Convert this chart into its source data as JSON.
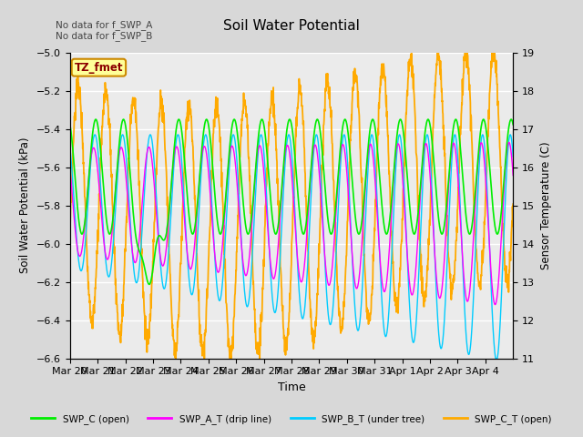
{
  "title": "Soil Water Potential",
  "xlabel": "Time",
  "ylabel_left": "Soil Water Potential (kPa)",
  "ylabel_right": "Sensor Temperature (C)",
  "ylim_left": [
    -6.6,
    -5.0
  ],
  "ylim_right": [
    11.0,
    19.0
  ],
  "yticks_left": [
    -6.6,
    -6.4,
    -6.2,
    -6.0,
    -5.8,
    -5.6,
    -5.4,
    -5.2,
    -5.0
  ],
  "yticks_right": [
    11.0,
    12.0,
    13.0,
    14.0,
    15.0,
    16.0,
    17.0,
    18.0,
    19.0
  ],
  "xtick_labels": [
    "Mar 20",
    "Mar 21",
    "Mar 22",
    "Mar 23",
    "Mar 24",
    "Mar 25",
    "Mar 26",
    "Mar 27",
    "Mar 28",
    "Mar 29",
    "Mar 30",
    "Mar 31",
    "Apr 1",
    "Apr 2",
    "Apr 3",
    "Apr 4"
  ],
  "annotation_text": "No data for f_SWP_A\nNo data for f_SWP_B",
  "annotation_box_label": "TZ_fmet",
  "colors": {
    "SWP_C": "#00ee00",
    "SWP_A_T": "#ff00ff",
    "SWP_B_T": "#00ccff",
    "SWP_C_T": "#ffaa00"
  },
  "legend_labels": [
    "SWP_C (open)",
    "SWP_A_T (drip line)",
    "SWP_B_T (under tree)",
    "SWP_C_T (open)"
  ],
  "background_color": "#d8d8d8",
  "plot_bg_color": "#ebebeb",
  "grid_color": "#ffffff"
}
